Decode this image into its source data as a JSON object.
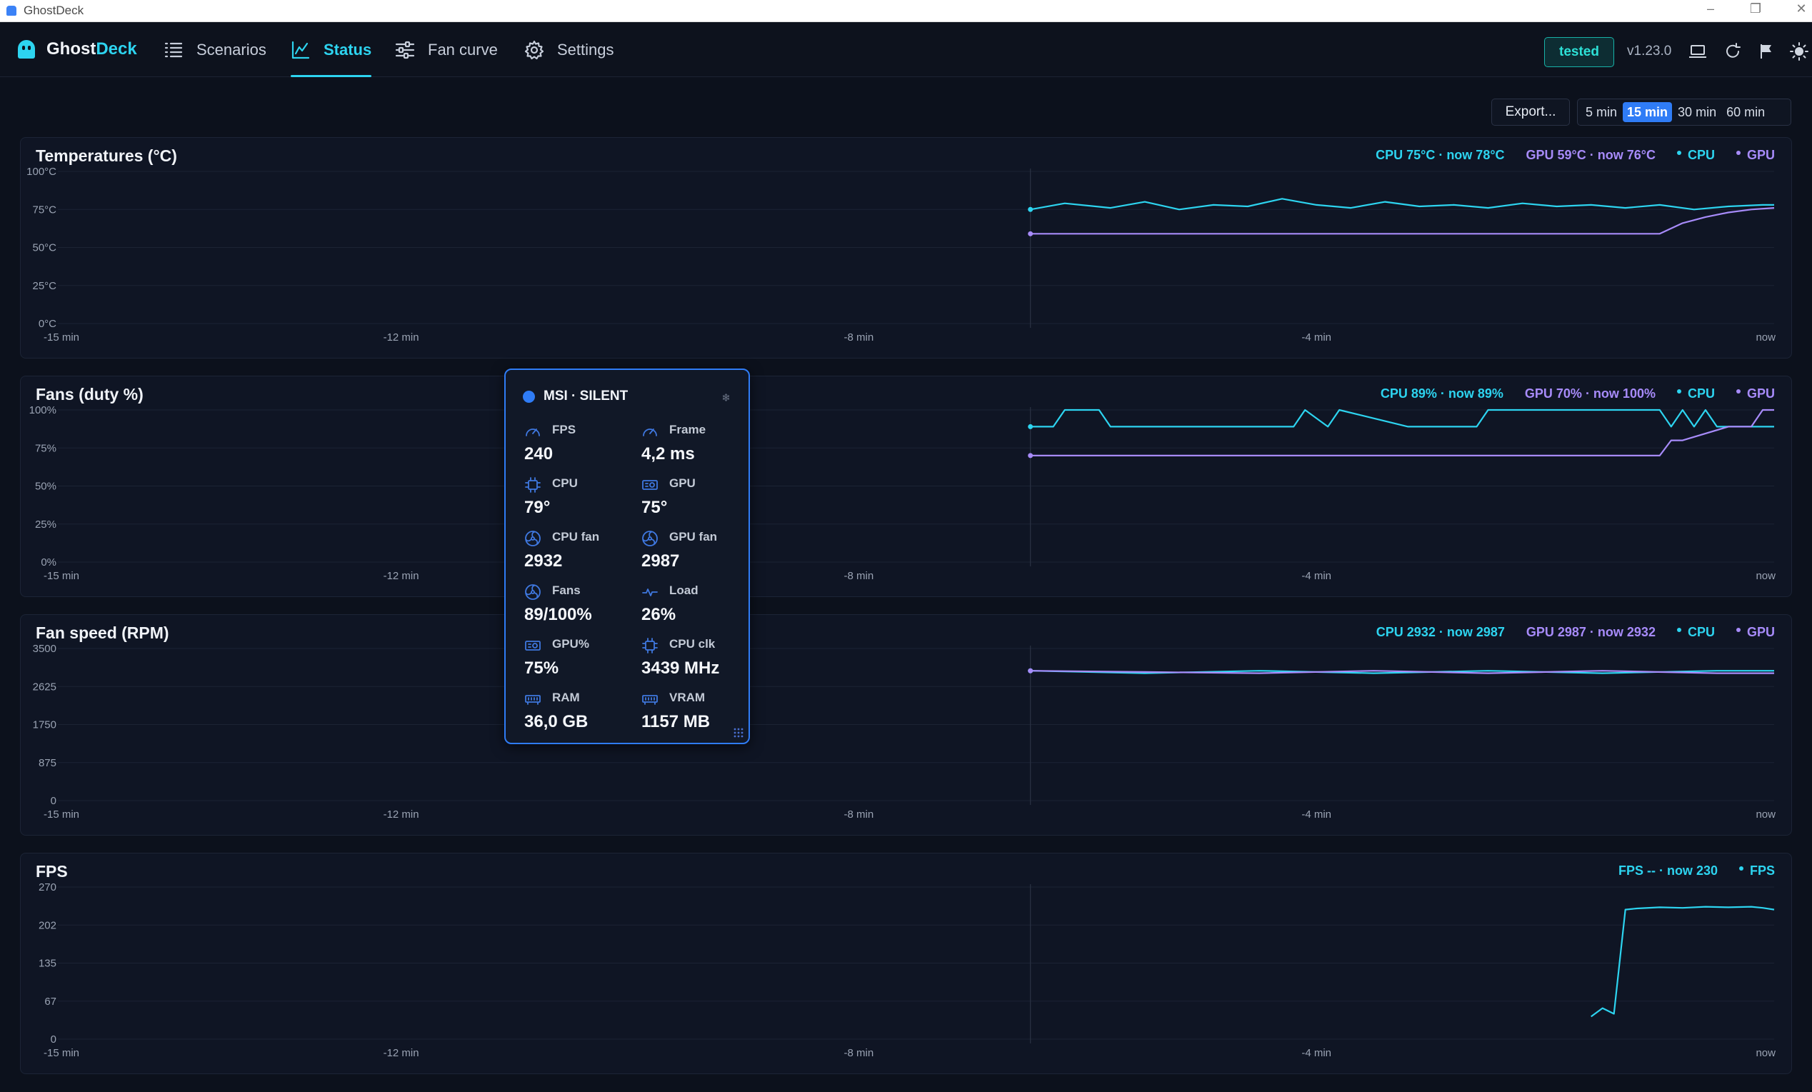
{
  "window": {
    "title": "GhostDeck"
  },
  "header": {
    "brand_prefix": "Ghost",
    "brand_suffix": "Deck",
    "tabs": [
      {
        "label": "Scenarios",
        "icon": "list-icon"
      },
      {
        "label": "Status",
        "icon": "chart-icon",
        "active": true
      },
      {
        "label": "Fan curve",
        "icon": "sliders-icon"
      },
      {
        "label": "Settings",
        "icon": "gear-icon"
      }
    ],
    "badge": "tested",
    "version": "v1.23.0"
  },
  "toolbar": {
    "export_label": "Export...",
    "ranges": [
      "5 min",
      "15 min",
      "30 min",
      "60 min"
    ],
    "active_range": "15 min"
  },
  "colors": {
    "cpu": "#2dd4f0",
    "gpu": "#a78bfa",
    "fps": "#2dd4f0",
    "accent": "#2f7cf6"
  },
  "charts": [
    {
      "title": "Temperatures (°C)",
      "legend_summaries": [
        {
          "text": "CPU 75°C · now 78°C",
          "color": "#2dd4f0"
        },
        {
          "text": "GPU 59°C · now 76°C",
          "color": "#a78bfa"
        }
      ],
      "legend_entries": [
        {
          "name": "CPU",
          "color": "#2dd4f0"
        },
        {
          "name": "GPU",
          "color": "#a78bfa"
        }
      ],
      "y_ticks": [
        "100°C",
        "75°C",
        "50°C",
        "25°C",
        "0°C"
      ],
      "x_ticks": [
        "-15 min",
        "-12 min",
        "-8 min",
        "-4 min",
        "now"
      ]
    },
    {
      "title": "Fans (duty %)",
      "legend_summaries": [
        {
          "text": "CPU 89% · now 89%",
          "color": "#2dd4f0"
        },
        {
          "text": "GPU 70% · now 100%",
          "color": "#a78bfa"
        }
      ],
      "legend_entries": [
        {
          "name": "CPU",
          "color": "#2dd4f0"
        },
        {
          "name": "GPU",
          "color": "#a78bfa"
        }
      ],
      "y_ticks": [
        "100%",
        "75%",
        "50%",
        "25%",
        "0%"
      ],
      "x_ticks": [
        "-15 min",
        "-12 min",
        "-8 min",
        "-4 min",
        "now"
      ]
    },
    {
      "title": "Fan speed (RPM)",
      "legend_summaries": [
        {
          "text": "CPU 2932 · now 2987",
          "color": "#2dd4f0"
        },
        {
          "text": "GPU 2987 · now 2932",
          "color": "#a78bfa"
        }
      ],
      "legend_entries": [
        {
          "name": "CPU",
          "color": "#2dd4f0"
        },
        {
          "name": "GPU",
          "color": "#a78bfa"
        }
      ],
      "y_ticks": [
        "3500",
        "2625",
        "1750",
        "875",
        "0"
      ],
      "x_ticks": [
        "-15 min",
        "-12 min",
        "-8 min",
        "-4 min",
        "now"
      ]
    },
    {
      "title": "FPS",
      "legend_summaries": [
        {
          "text": "FPS -- · now 230",
          "color": "#2dd4f0"
        }
      ],
      "legend_entries": [
        {
          "name": "FPS",
          "color": "#2dd4f0"
        }
      ],
      "y_ticks": [
        "270",
        "202",
        "135",
        "67",
        "0"
      ],
      "x_ticks": [
        "-15 min",
        "-12 min",
        "-8 min",
        "-4 min",
        "now"
      ]
    }
  ],
  "chart_data": [
    {
      "type": "line",
      "title": "Temperatures (°C)",
      "x_unit": "min",
      "ylim": [
        0,
        100
      ],
      "xlim": [
        -15,
        0
      ],
      "grid": true,
      "legend_position": "top-right",
      "series": [
        {
          "name": "CPU",
          "x": [
            -6.5,
            -6.2,
            -5.8,
            -5.5,
            -5.2,
            -4.9,
            -4.6,
            -4.3,
            -4.0,
            -3.7,
            -3.4,
            -3.1,
            -2.8,
            -2.5,
            -2.2,
            -1.9,
            -1.6,
            -1.3,
            -1.0,
            -0.7,
            -0.4,
            -0.1,
            0
          ],
          "y": [
            75,
            79,
            76,
            80,
            75,
            78,
            77,
            82,
            78,
            76,
            80,
            77,
            78,
            76,
            79,
            77,
            78,
            76,
            78,
            75,
            77,
            78,
            78
          ]
        },
        {
          "name": "GPU",
          "x": [
            -6.5,
            -6.0,
            -5.0,
            -4.0,
            -3.0,
            -2.0,
            -1.0,
            -0.8,
            -0.6,
            -0.4,
            -0.2,
            0
          ],
          "y": [
            59,
            59,
            59,
            59,
            59,
            59,
            59,
            66,
            70,
            73,
            75,
            76
          ]
        }
      ]
    },
    {
      "type": "line",
      "title": "Fans (duty %)",
      "x_unit": "min",
      "ylim": [
        0,
        100
      ],
      "xlim": [
        -15,
        0
      ],
      "grid": true,
      "legend_position": "top-right",
      "series": [
        {
          "name": "CPU",
          "x": [
            -6.5,
            -6.3,
            -6.2,
            -5.9,
            -5.8,
            -4.2,
            -4.1,
            -3.9,
            -3.8,
            -3.2,
            -3.1,
            -2.6,
            -2.5,
            -1.0,
            -0.9,
            -0.8,
            -0.7,
            -0.6,
            -0.5,
            -0.1,
            0
          ],
          "y": [
            89,
            89,
            100,
            100,
            89,
            89,
            100,
            89,
            100,
            89,
            89,
            89,
            100,
            100,
            89,
            100,
            89,
            100,
            89,
            89,
            89
          ]
        },
        {
          "name": "GPU",
          "x": [
            -6.5,
            -1.0,
            -0.9,
            -0.8,
            -0.4,
            -0.3,
            -0.2,
            -0.1,
            0
          ],
          "y": [
            70,
            70,
            80,
            80,
            89,
            89,
            89,
            100,
            100
          ]
        }
      ]
    },
    {
      "type": "line",
      "title": "Fan speed (RPM)",
      "x_unit": "min",
      "ylim": [
        0,
        3500
      ],
      "xlim": [
        -15,
        0
      ],
      "grid": true,
      "legend_position": "top-right",
      "series": [
        {
          "name": "CPU",
          "x": [
            -6.5,
            -5.5,
            -4.5,
            -3.5,
            -2.5,
            -1.5,
            -0.5,
            0
          ],
          "y": [
            2987,
            2932,
            2987,
            2932,
            2987,
            2932,
            2987,
            2987
          ]
        },
        {
          "name": "GPU",
          "x": [
            -6.5,
            -5.5,
            -4.5,
            -3.5,
            -2.5,
            -1.5,
            -0.5,
            0
          ],
          "y": [
            2987,
            2960,
            2932,
            2987,
            2932,
            2987,
            2932,
            2932
          ]
        }
      ]
    },
    {
      "type": "line",
      "title": "FPS",
      "x_unit": "min",
      "ylim": [
        0,
        270
      ],
      "xlim": [
        -15,
        0
      ],
      "grid": true,
      "legend_position": "top-right",
      "series": [
        {
          "name": "FPS",
          "x": [
            -1.6,
            -1.5,
            -1.4,
            -1.3,
            -1.2,
            -1.0,
            -0.8,
            -0.6,
            -0.4,
            -0.2,
            -0.1,
            0
          ],
          "y": [
            40,
            55,
            45,
            230,
            232,
            234,
            233,
            235,
            234,
            235,
            233,
            230
          ]
        }
      ]
    }
  ],
  "overlay": {
    "title": "MSI · SILENT",
    "metrics": [
      {
        "label": "FPS",
        "value": "240",
        "icon": "gauge-icon"
      },
      {
        "label": "Frame",
        "value": "4,2 ms",
        "icon": "gauge-icon"
      },
      {
        "label": "CPU",
        "value": "79°",
        "icon": "chip-icon"
      },
      {
        "label": "GPU",
        "value": "75°",
        "icon": "gpu-card-icon"
      },
      {
        "label": "CPU fan",
        "value": "2932",
        "icon": "fan-icon"
      },
      {
        "label": "GPU fan",
        "value": "2987",
        "icon": "fan-icon"
      },
      {
        "label": "Fans",
        "value": "89/100%",
        "icon": "fan-icon"
      },
      {
        "label": "Load",
        "value": "26%",
        "icon": "pulse-icon"
      },
      {
        "label": "GPU%",
        "value": "75%",
        "icon": "gpu-card-icon"
      },
      {
        "label": "CPU clk",
        "value": "3439 MHz",
        "icon": "chip-icon"
      },
      {
        "label": "RAM",
        "value": "36,0 GB",
        "icon": "memory-icon"
      },
      {
        "label": "VRAM",
        "value": "1157 MB",
        "icon": "memory-icon"
      }
    ]
  }
}
